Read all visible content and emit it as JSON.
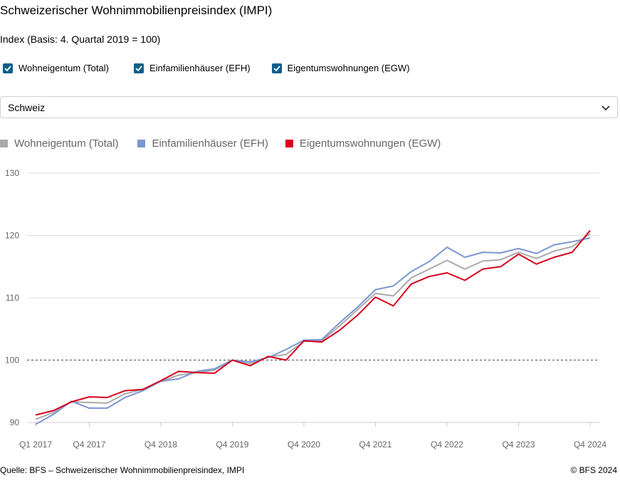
{
  "title": "Schweizerischer Wohnimmobilienpreisindex (IMPI)",
  "subtitle": "Index (Basis: 4. Quartal 2019 = 100)",
  "checkboxes": [
    {
      "label": "Wohneigentum (Total)",
      "checked": true
    },
    {
      "label": "Einfamilienhäuser (EFH)",
      "checked": true
    },
    {
      "label": "Eigentumswohnungen (EGW)",
      "checked": true
    }
  ],
  "region_select": {
    "selected": "Schweiz"
  },
  "legend": [
    {
      "label": "Wohneigentum (Total)",
      "color": "#aaaaaa"
    },
    {
      "label": "Einfamilienhäuser (EFH)",
      "color": "#7b96d4"
    },
    {
      "label": "Eigentumswohnungen (EGW)",
      "color": "#d7001c"
    }
  ],
  "footer": {
    "source": "Quelle: BFS – Schweizerischer Wohnimmobilienpreisindex, IMPI",
    "copyright": "© BFS 2024"
  },
  "chart_data": {
    "type": "line",
    "title": "Schweizerischer Wohnimmobilienpreisindex (IMPI)",
    "ylabel": "Index (Basis: 4. Quartal 2019 = 100)",
    "ylim": [
      90,
      130
    ],
    "yticks": [
      90,
      100,
      110,
      120,
      130
    ],
    "reference_line": 100,
    "x": [
      "Q1 2017",
      "Q2 2017",
      "Q3 2017",
      "Q4 2017",
      "Q1 2018",
      "Q2 2018",
      "Q3 2018",
      "Q4 2018",
      "Q1 2019",
      "Q2 2019",
      "Q3 2019",
      "Q4 2019",
      "Q1 2020",
      "Q2 2020",
      "Q3 2020",
      "Q4 2020",
      "Q1 2021",
      "Q2 2021",
      "Q3 2021",
      "Q4 2021",
      "Q1 2022",
      "Q2 2022",
      "Q3 2022",
      "Q4 2022",
      "Q1 2023",
      "Q2 2023",
      "Q3 2023",
      "Q4 2023",
      "Q1 2024",
      "Q2 2024",
      "Q3 2024",
      "Q4 2024"
    ],
    "xtick_labels": [
      "Q1 2017",
      "Q4 2017",
      "Q4 2018",
      "Q4 2019",
      "Q4 2020",
      "Q4 2021",
      "Q4 2022",
      "Q4 2023",
      "Q4 2024"
    ],
    "series": [
      {
        "name": "Wohneigentum (Total)",
        "color": "#aaaaaa",
        "values": [
          90.5,
          91.6,
          93.3,
          93.2,
          93.1,
          94.6,
          95.3,
          96.6,
          97.6,
          98.0,
          98.4,
          100.0,
          99.4,
          100.5,
          100.9,
          103.0,
          103.1,
          105.5,
          108.1,
          110.7,
          110.3,
          113.2,
          114.6,
          116.0,
          114.6,
          115.9,
          116.1,
          117.3,
          116.3,
          117.5,
          118.2,
          120.3
        ]
      },
      {
        "name": "Einfamilienhäuser (EFH)",
        "color": "#7b96d4",
        "values": [
          89.7,
          91.3,
          93.4,
          92.3,
          92.3,
          94.0,
          95.1,
          96.6,
          97.0,
          98.2,
          98.6,
          100.0,
          99.7,
          100.4,
          101.7,
          103.2,
          103.3,
          106.0,
          108.5,
          111.3,
          111.9,
          114.2,
          115.8,
          118.1,
          116.5,
          117.3,
          117.2,
          117.9,
          117.1,
          118.5,
          119.0,
          119.6
        ]
      },
      {
        "name": "Eigentumswohnungen (EGW)",
        "color": "#d7001c",
        "values": [
          91.2,
          91.9,
          93.3,
          94.1,
          94.0,
          95.1,
          95.3,
          96.7,
          98.2,
          98.0,
          97.9,
          100.0,
          99.1,
          100.6,
          100.0,
          103.1,
          102.9,
          104.8,
          107.2,
          110.1,
          108.7,
          112.2,
          113.4,
          114.0,
          112.8,
          114.6,
          115.0,
          117.0,
          115.4,
          116.5,
          117.3,
          120.8
        ]
      }
    ]
  }
}
